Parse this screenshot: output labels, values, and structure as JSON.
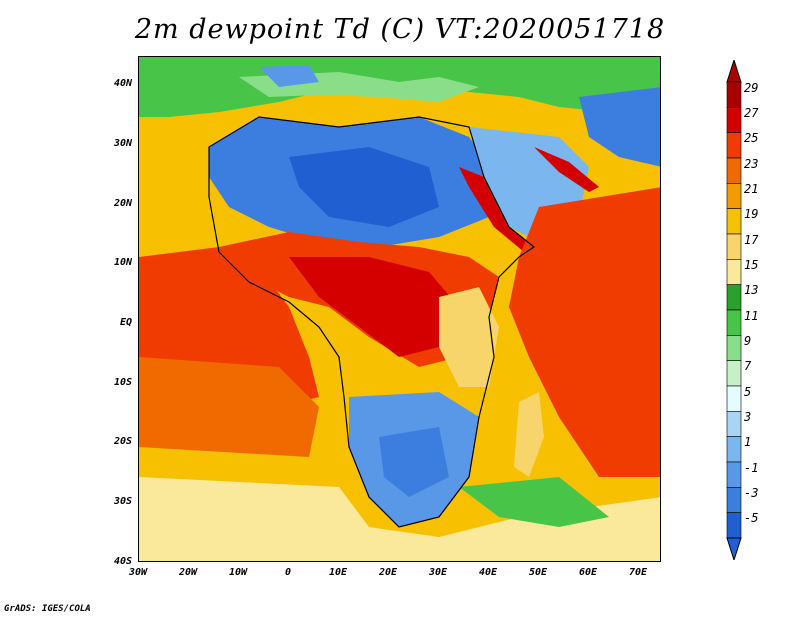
{
  "title": "2m dewpoint Td (C) VT:2020051718",
  "credit": "GrADS: IGES/COLA",
  "lat_labels": [
    "40N",
    "30N",
    "20N",
    "10N",
    "EQ",
    "10S",
    "20S",
    "30S",
    "40S"
  ],
  "lon_labels": [
    "30W",
    "20W",
    "10W",
    "0",
    "10E",
    "20E",
    "30E",
    "40E",
    "50E",
    "60E",
    "70E"
  ],
  "colorbar": {
    "labels": [
      "29",
      "27",
      "25",
      "23",
      "21",
      "19",
      "17",
      "15",
      "13",
      "11",
      "9",
      "7",
      "5",
      "3",
      "1",
      "-1",
      "-3",
      "-5"
    ],
    "colors": [
      "#a80000",
      "#d40000",
      "#f03c00",
      "#f06a00",
      "#f59a00",
      "#f7c000",
      "#f8d56a",
      "#fae99a",
      "#2ca02c",
      "#48c548",
      "#8ade8a",
      "#c8f0c8",
      "#e6fbff",
      "#a9d4f5",
      "#7bb6ee",
      "#5898e6",
      "#3c7ee0",
      "#1f5fd2"
    ]
  }
}
